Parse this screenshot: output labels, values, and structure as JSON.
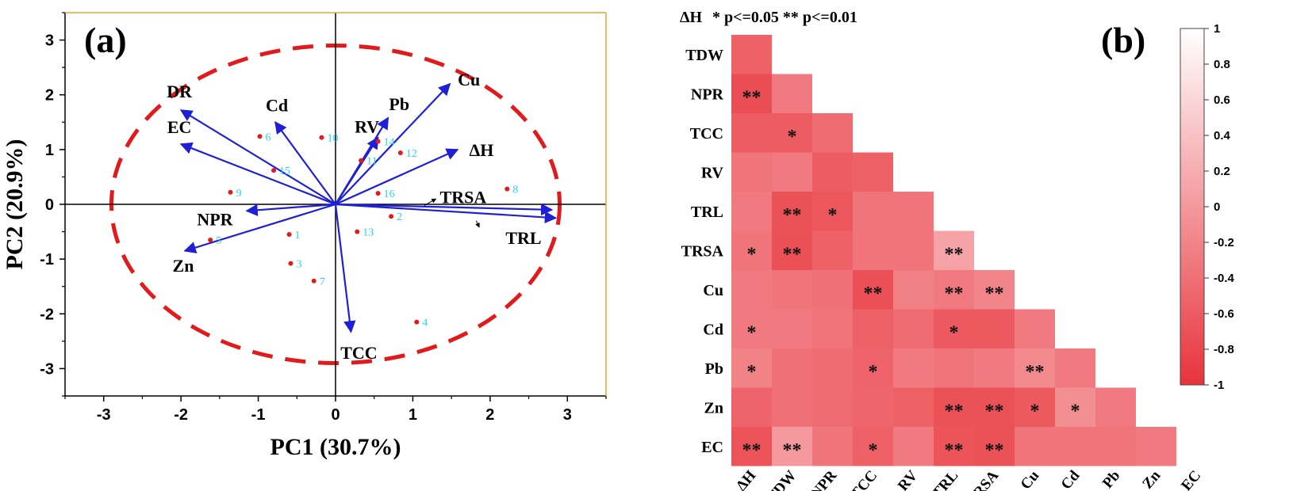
{
  "chart_data": [
    {
      "type": "scatter",
      "panel_label": "(a)",
      "title": "",
      "xlabel": "PC1 (30.7%)",
      "ylabel": "PC2 (20.9%)",
      "xlim": [
        -3.5,
        3.5
      ],
      "ylim": [
        -3.5,
        3.5
      ],
      "xticks": [
        "-3",
        "-2",
        "-1",
        "0",
        "1",
        "2",
        "3"
      ],
      "yticks": [
        "-3",
        "-2",
        "-1",
        "0",
        "1",
        "2",
        "3"
      ],
      "confidence_ellipse": {
        "cx": 0,
        "cy": 0,
        "rx": 2.9,
        "ry": 2.9,
        "color": "#e31a1c"
      },
      "points": [
        {
          "label": "1",
          "x": -0.6,
          "y": -0.55
        },
        {
          "label": "2",
          "x": 0.72,
          "y": -0.22
        },
        {
          "label": "3",
          "x": -0.58,
          "y": -1.08
        },
        {
          "label": "4",
          "x": 1.05,
          "y": -2.15
        },
        {
          "label": "5",
          "x": -1.62,
          "y": -0.65
        },
        {
          "label": "6",
          "x": -0.98,
          "y": 1.24
        },
        {
          "label": "7",
          "x": -0.28,
          "y": -1.4
        },
        {
          "label": "8",
          "x": 2.22,
          "y": 0.28
        },
        {
          "label": "9",
          "x": -1.36,
          "y": 0.22
        },
        {
          "label": "10",
          "x": -0.18,
          "y": 1.22
        },
        {
          "label": "11",
          "x": 0.33,
          "y": 0.8
        },
        {
          "label": "12",
          "x": 0.84,
          "y": 0.94
        },
        {
          "label": "13",
          "x": 0.28,
          "y": -0.5
        },
        {
          "label": "14",
          "x": 0.55,
          "y": 1.15
        },
        {
          "label": "15",
          "x": -0.8,
          "y": 0.62
        },
        {
          "label": "16",
          "x": 0.55,
          "y": 0.2
        }
      ],
      "loadings": [
        {
          "label": "DR",
          "x": -2.0,
          "y": 1.72
        },
        {
          "label": "EC",
          "x": -2.0,
          "y": 1.1
        },
        {
          "label": "Cd",
          "x": -0.78,
          "y": 1.5
        },
        {
          "label": "RV",
          "x": 0.55,
          "y": 1.22
        },
        {
          "label": "Pb",
          "x": 0.68,
          "y": 1.58
        },
        {
          "label": "Cu",
          "x": 1.48,
          "y": 2.2
        },
        {
          "label": "ΔH",
          "x": 1.58,
          "y": 1.0
        },
        {
          "label": "TRSA",
          "x": 2.8,
          "y": -0.1
        },
        {
          "label": "TRL",
          "x": 2.85,
          "y": -0.25
        },
        {
          "label": "NPR",
          "x": -1.15,
          "y": -0.12
        },
        {
          "label": "Zn",
          "x": -1.95,
          "y": -0.85
        },
        {
          "label": "TCC",
          "x": 0.2,
          "y": -2.33
        }
      ],
      "colors": {
        "arrow": "#1f1fd6",
        "point": "#e31a1c",
        "point_label": "#2ad4ec",
        "frame_right_top": "#f0a030"
      }
    },
    {
      "type": "heatmap",
      "panel_label": "(b)",
      "title": "",
      "legend_note": "* p<=0.05  ** p<=0.01",
      "variables": [
        "ΔH",
        "TDW",
        "NPR",
        "TCC",
        "RV",
        "TRL",
        "TRSA",
        "Cu",
        "Cd",
        "Pb",
        "Zn",
        "EC"
      ],
      "colorbar": {
        "ticks": [
          "1",
          "0.8",
          "0.6",
          "0.4",
          "0.2",
          "0",
          "-0.2",
          "-0.4",
          "-0.6",
          "-0.8",
          "-1"
        ],
        "range": [
          -1,
          1
        ],
        "color_low": "#e8333b",
        "color_high": "#ffffff"
      },
      "lower_triangle": [
        {
          "row": "TDW",
          "values": [
            -0.55
          ]
        },
        {
          "row": "NPR",
          "values": [
            -0.75,
            -0.3
          ]
        },
        {
          "row": "TCC",
          "values": [
            -0.6,
            -0.6,
            -0.45
          ]
        },
        {
          "row": "RV",
          "values": [
            -0.35,
            -0.3,
            -0.6,
            -0.55
          ]
        },
        {
          "row": "TRL",
          "values": [
            -0.3,
            -0.7,
            -0.65,
            -0.35,
            -0.35
          ]
        },
        {
          "row": "TRSA",
          "values": [
            -0.35,
            -0.72,
            -0.55,
            -0.35,
            -0.35,
            0.1
          ]
        },
        {
          "row": "Cu",
          "values": [
            -0.3,
            -0.35,
            -0.4,
            -0.72,
            -0.25,
            -0.3,
            -0.2
          ]
        },
        {
          "row": "Cd",
          "values": [
            -0.3,
            -0.3,
            -0.35,
            -0.55,
            -0.45,
            -0.62,
            -0.62,
            -0.3
          ]
        },
        {
          "row": "Pb",
          "values": [
            -0.22,
            -0.4,
            -0.45,
            -0.52,
            -0.3,
            -0.35,
            -0.3,
            -0.15,
            -0.3
          ]
        },
        {
          "row": "Zn",
          "values": [
            -0.52,
            -0.4,
            -0.45,
            -0.5,
            -0.55,
            -0.7,
            -0.7,
            -0.62,
            -0.1,
            -0.3
          ]
        },
        {
          "row": "EC",
          "values": [
            -0.68,
            0.0,
            -0.35,
            -0.55,
            -0.3,
            -0.68,
            -0.7,
            -0.35,
            -0.35,
            -0.35,
            -0.3
          ]
        }
      ],
      "significance": [
        {
          "row": "TDW",
          "marks": [
            ""
          ]
        },
        {
          "row": "NPR",
          "marks": [
            "**",
            ""
          ]
        },
        {
          "row": "TCC",
          "marks": [
            "",
            "*",
            ""
          ]
        },
        {
          "row": "RV",
          "marks": [
            "",
            "",
            "",
            ""
          ]
        },
        {
          "row": "TRL",
          "marks": [
            "",
            "**",
            "*",
            "",
            ""
          ]
        },
        {
          "row": "TRSA",
          "marks": [
            "*",
            "**",
            "",
            "",
            "",
            "**"
          ]
        },
        {
          "row": "Cu",
          "marks": [
            "",
            "",
            "",
            "**",
            "",
            "**",
            "**"
          ]
        },
        {
          "row": "Cd",
          "marks": [
            "*",
            "",
            "",
            "",
            "",
            "*",
            "",
            ""
          ]
        },
        {
          "row": "Pb",
          "marks": [
            "*",
            "",
            "",
            "*",
            "",
            "",
            "",
            "**",
            ""
          ]
        },
        {
          "row": "Zn",
          "marks": [
            "",
            "",
            "",
            "",
            "",
            "**",
            "**",
            "*",
            "*",
            ""
          ]
        },
        {
          "row": "EC",
          "marks": [
            "**",
            "**",
            "",
            "*",
            "",
            "**",
            "**",
            "",
            "",
            "",
            ""
          ]
        }
      ]
    }
  ]
}
